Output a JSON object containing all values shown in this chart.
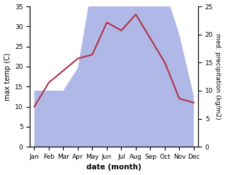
{
  "months": [
    "Jan",
    "Feb",
    "Mar",
    "Apr",
    "May",
    "Jun",
    "Jul",
    "Aug",
    "Sep",
    "Oct",
    "Nov",
    "Dec"
  ],
  "month_positions": [
    0,
    1,
    2,
    3,
    4,
    5,
    6,
    7,
    8,
    9,
    10,
    11
  ],
  "temperature": [
    10,
    16,
    19,
    22,
    23,
    31,
    29,
    33,
    27,
    21,
    12,
    11
  ],
  "precipitation": [
    10,
    10,
    10,
    14,
    29,
    32,
    26,
    34,
    35,
    28,
    20,
    9
  ],
  "temp_ylim": [
    0,
    35
  ],
  "precip_ylim": [
    0,
    25
  ],
  "temp_yticks": [
    0,
    5,
    10,
    15,
    20,
    25,
    30,
    35
  ],
  "precip_yticks": [
    0,
    5,
    10,
    15,
    20,
    25
  ],
  "temp_color": "#b03040",
  "precip_color_fill": "#b0b8e8",
  "xlabel": "date (month)",
  "ylabel_left": "max temp (C)",
  "ylabel_right": "med. precipitation (kg/m2)",
  "background_color": "#ffffff",
  "label_fontsize": 7,
  "tick_fontsize": 6.5
}
